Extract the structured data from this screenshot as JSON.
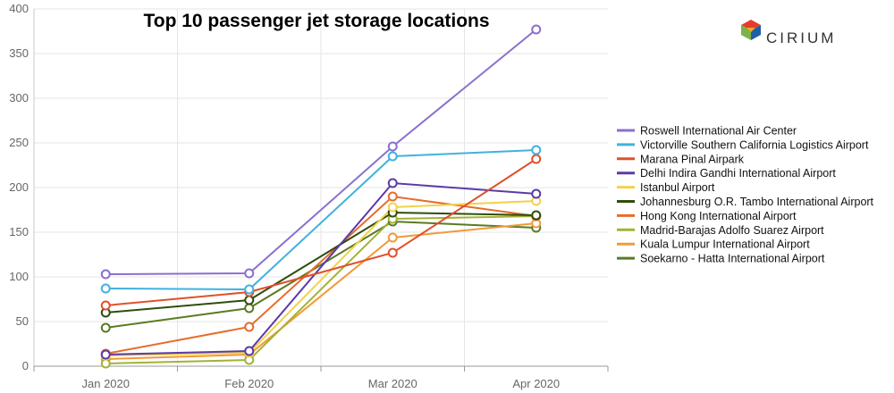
{
  "brand": {
    "name": "CIRIUM",
    "colors": [
      "#e63b2e",
      "#f5a623",
      "#7bb24a",
      "#1f5fa8"
    ]
  },
  "chart_data": {
    "type": "line",
    "title": "Top 10 passenger jet storage locations",
    "xlabel": "",
    "ylabel": "",
    "categories": [
      "Jan 2020",
      "Feb 2020",
      "Mar 2020",
      "Apr 2020"
    ],
    "ylim": [
      0,
      400
    ],
    "yticks": [
      0,
      50,
      100,
      150,
      200,
      250,
      300,
      350,
      400
    ],
    "grid": true,
    "legend_position": "right",
    "series": [
      {
        "name": "Roswell International Air Center",
        "color": "#8a6fcf",
        "values": [
          103,
          104,
          246,
          377
        ]
      },
      {
        "name": "Victorville Southern California Logistics Airport",
        "color": "#41b1df",
        "values": [
          87,
          86,
          235,
          242
        ]
      },
      {
        "name": "Marana Pinal Airpark",
        "color": "#e0502a",
        "values": [
          68,
          83,
          127,
          232
        ]
      },
      {
        "name": "Delhi Indira Gandhi International Airport",
        "color": "#5b3aa8",
        "values": [
          13,
          17,
          205,
          193
        ]
      },
      {
        "name": "Istanbul Airport",
        "color": "#f2d24a",
        "values": [
          12,
          15,
          178,
          185
        ]
      },
      {
        "name": "Johannesburg O.R. Tambo International Airport",
        "color": "#2f4d0d",
        "values": [
          60,
          74,
          172,
          169
        ]
      },
      {
        "name": "Hong Kong International Airport",
        "color": "#e86b2a",
        "values": [
          14,
          44,
          190,
          168
        ]
      },
      {
        "name": "Madrid-Barajas Adolfo Suarez Airport",
        "color": "#a3b236",
        "values": [
          3,
          7,
          165,
          168
        ]
      },
      {
        "name": "Kuala Lumpur International Airport",
        "color": "#f09a3a",
        "values": [
          8,
          13,
          144,
          160
        ]
      },
      {
        "name": "Soekarno - Hatta International Airport",
        "color": "#5a7a22",
        "values": [
          43,
          65,
          162,
          155
        ]
      }
    ]
  }
}
